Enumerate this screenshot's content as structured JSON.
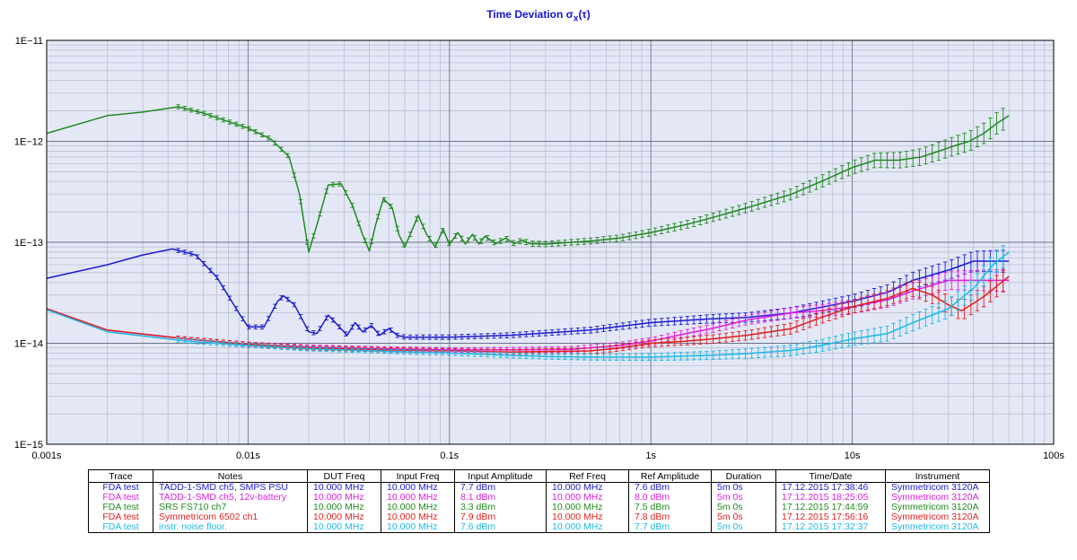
{
  "chart_data": {
    "type": "line",
    "title": "Time Deviation σ",
    "title_sub": "x",
    "title_suffix": "(τ)",
    "x_scale": "log",
    "y_scale": "log",
    "xlim": [
      0.001,
      100
    ],
    "ylim": [
      1e-15,
      1e-11
    ],
    "grid": true,
    "x_ticks": [
      {
        "v": 0.001,
        "label": "0.001s"
      },
      {
        "v": 0.01,
        "label": "0.01s"
      },
      {
        "v": 0.1,
        "label": "0.1s"
      },
      {
        "v": 1,
        "label": "1s"
      },
      {
        "v": 10,
        "label": "10s"
      },
      {
        "v": 100,
        "label": "100s"
      }
    ],
    "y_ticks": [
      {
        "v": 1e-15,
        "label": "1E−15"
      },
      {
        "v": 1e-14,
        "label": "1E−14"
      },
      {
        "v": 1e-13,
        "label": "1E−13"
      },
      {
        "v": 1e-12,
        "label": "1E−12"
      },
      {
        "v": 1e-11,
        "label": "1E−11"
      }
    ],
    "series": [
      {
        "name": "SRS FS710 ch7",
        "color": "#1f8a1f",
        "points": [
          [
            0.001,
            1.2e-12
          ],
          [
            0.002,
            1.8e-12
          ],
          [
            0.003,
            1.95e-12
          ],
          [
            0.0045,
            2.2e-12
          ],
          [
            0.006,
            1.9e-12
          ],
          [
            0.01,
            1.35e-12
          ],
          [
            0.013,
            1.05e-12
          ],
          [
            0.016,
            7e-13
          ],
          [
            0.018,
            3e-13
          ],
          [
            0.02,
            8e-14
          ],
          [
            0.022,
            1.5e-13
          ],
          [
            0.025,
            3.7e-13
          ],
          [
            0.029,
            3.8e-13
          ],
          [
            0.033,
            2.3e-13
          ],
          [
            0.037,
            1.2e-13
          ],
          [
            0.04,
            8.2e-14
          ],
          [
            0.043,
            1.5e-13
          ],
          [
            0.047,
            2.7e-13
          ],
          [
            0.052,
            2.2e-13
          ],
          [
            0.056,
            1.2e-13
          ],
          [
            0.06,
            9e-14
          ],
          [
            0.065,
            1.3e-13
          ],
          [
            0.07,
            1.85e-13
          ],
          [
            0.077,
            1.2e-13
          ],
          [
            0.085,
            9e-14
          ],
          [
            0.093,
            1.35e-13
          ],
          [
            0.1,
            9.5e-14
          ],
          [
            0.11,
            1.25e-13
          ],
          [
            0.12,
            9.6e-14
          ],
          [
            0.13,
            1.2e-13
          ],
          [
            0.14,
            9.6e-14
          ],
          [
            0.15,
            1.15e-13
          ],
          [
            0.17,
            9.7e-14
          ],
          [
            0.19,
            1.1e-13
          ],
          [
            0.21,
            9.7e-14
          ],
          [
            0.23,
            1.05e-13
          ],
          [
            0.25,
            9.7e-14
          ],
          [
            0.3,
            9.6e-14
          ],
          [
            0.4,
            1e-13
          ],
          [
            0.5,
            1.03e-13
          ],
          [
            0.7,
            1.1e-13
          ],
          [
            1,
            1.25e-13
          ],
          [
            1.5,
            1.5e-13
          ],
          [
            2,
            1.75e-13
          ],
          [
            3,
            2.2e-13
          ],
          [
            5,
            3e-13
          ],
          [
            7,
            4e-13
          ],
          [
            10,
            5.5e-13
          ],
          [
            13,
            6.5e-13
          ],
          [
            17,
            6.5e-13
          ],
          [
            22,
            7e-13
          ],
          [
            27,
            8e-13
          ],
          [
            32,
            9e-13
          ],
          [
            38,
            1e-12
          ],
          [
            45,
            1.2e-12
          ],
          [
            52,
            1.5e-12
          ],
          [
            60,
            1.8e-12
          ]
        ]
      },
      {
        "name": "TADD-1-SMD ch5, SMPS PSU",
        "color": "#1c1cd0",
        "points": [
          [
            0.001,
            4.4e-14
          ],
          [
            0.002,
            6e-14
          ],
          [
            0.003,
            7.5e-14
          ],
          [
            0.0042,
            8.6e-14
          ],
          [
            0.0055,
            7.5e-14
          ],
          [
            0.007,
            4.5e-14
          ],
          [
            0.009,
            2e-14
          ],
          [
            0.01,
            1.45e-14
          ],
          [
            0.012,
            1.45e-14
          ],
          [
            0.014,
            2.6e-14
          ],
          [
            0.015,
            2.95e-14
          ],
          [
            0.017,
            2.4e-14
          ],
          [
            0.02,
            1.3e-14
          ],
          [
            0.022,
            1.25e-14
          ],
          [
            0.025,
            1.9e-14
          ],
          [
            0.028,
            1.5e-14
          ],
          [
            0.031,
            1.2e-14
          ],
          [
            0.034,
            1.6e-14
          ],
          [
            0.037,
            1.3e-14
          ],
          [
            0.041,
            1.5e-14
          ],
          [
            0.045,
            1.2e-14
          ],
          [
            0.05,
            1.4e-14
          ],
          [
            0.055,
            1.2e-14
          ],
          [
            0.06,
            1.15e-14
          ],
          [
            0.08,
            1.15e-14
          ],
          [
            0.1,
            1.15e-14
          ],
          [
            0.2,
            1.2e-14
          ],
          [
            0.5,
            1.35e-14
          ],
          [
            1,
            1.6e-14
          ],
          [
            2,
            1.75e-14
          ],
          [
            3,
            1.8e-14
          ],
          [
            5,
            2e-14
          ],
          [
            10,
            2.6e-14
          ],
          [
            15,
            3.2e-14
          ],
          [
            20,
            4.2e-14
          ],
          [
            30,
            5.3e-14
          ],
          [
            40,
            6.5e-14
          ],
          [
            60,
            6.5e-14
          ]
        ]
      },
      {
        "name": "TADD-1-SMD ch5, 12v-battery",
        "color": "#e01ee0",
        "points": [
          [
            0.001,
            2.2e-14
          ],
          [
            0.002,
            1.35e-14
          ],
          [
            0.005,
            1.1e-14
          ],
          [
            0.01,
            9.8e-15
          ],
          [
            0.02,
            9.2e-15
          ],
          [
            0.05,
            8.8e-15
          ],
          [
            0.1,
            8.6e-15
          ],
          [
            0.2,
            8.6e-15
          ],
          [
            0.4,
            8.7e-15
          ],
          [
            0.7,
            9.5e-15
          ],
          [
            1,
            1.05e-14
          ],
          [
            1.5,
            1.25e-14
          ],
          [
            2,
            1.4e-14
          ],
          [
            3,
            1.7e-14
          ],
          [
            5,
            2e-14
          ],
          [
            7,
            2.1e-14
          ],
          [
            10,
            2.3e-14
          ],
          [
            15,
            2.7e-14
          ],
          [
            20,
            3.3e-14
          ],
          [
            30,
            4.2e-14
          ],
          [
            40,
            4.2e-14
          ],
          [
            60,
            4.2e-14
          ]
        ]
      },
      {
        "name": "Symmetricom 6502 ch1",
        "color": "#e01e1e",
        "points": [
          [
            0.001,
            2.2e-14
          ],
          [
            0.002,
            1.35e-14
          ],
          [
            0.005,
            1.1e-14
          ],
          [
            0.01,
            9.8e-15
          ],
          [
            0.02,
            9e-15
          ],
          [
            0.05,
            8.6e-15
          ],
          [
            0.1,
            8.4e-15
          ],
          [
            0.2,
            8.2e-15
          ],
          [
            0.5,
            8.4e-15
          ],
          [
            0.7,
            9e-15
          ],
          [
            1,
            1e-14
          ],
          [
            1.5,
            1.05e-14
          ],
          [
            2,
            1.1e-14
          ],
          [
            3,
            1.2e-14
          ],
          [
            5,
            1.4e-14
          ],
          [
            7,
            1.8e-14
          ],
          [
            10,
            2.3e-14
          ],
          [
            15,
            2.8e-14
          ],
          [
            20,
            3.5e-14
          ],
          [
            25,
            3e-14
          ],
          [
            30,
            2.4e-14
          ],
          [
            35,
            2.1e-14
          ],
          [
            45,
            2.9e-14
          ],
          [
            60,
            4.6e-14
          ]
        ]
      },
      {
        "name": "instr. noise floor.",
        "color": "#1cb8e6",
        "points": [
          [
            0.001,
            2.15e-14
          ],
          [
            0.002,
            1.3e-14
          ],
          [
            0.005,
            1.05e-14
          ],
          [
            0.01,
            9.5e-15
          ],
          [
            0.02,
            8.8e-15
          ],
          [
            0.05,
            8.3e-15
          ],
          [
            0.1,
            8e-15
          ],
          [
            0.2,
            7.6e-15
          ],
          [
            0.3,
            7.4e-15
          ],
          [
            0.5,
            7.3e-15
          ],
          [
            1,
            7.3e-15
          ],
          [
            2,
            7.6e-15
          ],
          [
            3,
            7.9e-15
          ],
          [
            5,
            8.5e-15
          ],
          [
            7,
            9.5e-15
          ],
          [
            10,
            1.1e-14
          ],
          [
            15,
            1.25e-14
          ],
          [
            20,
            1.6e-14
          ],
          [
            30,
            2.2e-14
          ],
          [
            40,
            3.5e-14
          ],
          [
            50,
            6e-14
          ],
          [
            60,
            8e-14
          ]
        ]
      }
    ]
  },
  "legend_table": {
    "headers": [
      "Trace",
      "Notes",
      "DUT Freq",
      "Input Freq",
      "Input Amplitude",
      "Ref Freq",
      "Ref Amplitude",
      "Duration",
      "Time/Date",
      "Instrument"
    ],
    "rows": [
      {
        "color": "#1c1cd0",
        "cells": [
          "FDA test",
          "TADD-1-SMD  ch5, SMPS PSU",
          "10.000 MHz",
          "10.000 MHz",
          "7.7 dBm",
          "10.000 MHz",
          "7.6 dBm",
          "5m 0s",
          "17.12.2015 17:38:46",
          "Symmetricom 3120A"
        ]
      },
      {
        "color": "#e01ee0",
        "cells": [
          "FDA test",
          "TADD-1-SMD ch5, 12v-battery",
          "10.000 MHz",
          "10.000 MHz",
          "8.1 dBm",
          "10.000 MHz",
          "8.0 dBm",
          "5m 0s",
          "17.12.2015 18:25:05",
          "Symmetricom 3120A"
        ]
      },
      {
        "color": "#1f8a1f",
        "cells": [
          "FDA test",
          "SRS FS710 ch7",
          "10.000 MHz",
          "10.000 MHz",
          "3.3 dBm",
          "10.000 MHz",
          "7.5 dBm",
          "5m 0s",
          "17.12.2015 17:44:59",
          "Symmetricom 3120A"
        ]
      },
      {
        "color": "#e01e1e",
        "cells": [
          "FDA test",
          "Symmetricom 6502 ch1",
          "10.000 MHz",
          "10.000 MHz",
          "7.9 dBm",
          "10.000 MHz",
          "7.8 dBm",
          "5m 0s",
          "17.12.2015 17:56:16",
          "Symmetricom 3120A"
        ]
      },
      {
        "color": "#1cb8e6",
        "cells": [
          "FDA test",
          "instr. noise floor.",
          "10.000 MHz",
          "10.000 MHz",
          "7.6 dBm",
          "10.000 MHz",
          "7.7 dBm",
          "5m 0s",
          "17.12.2015 17:32:37",
          "Symmetricom 3120A"
        ]
      }
    ]
  }
}
